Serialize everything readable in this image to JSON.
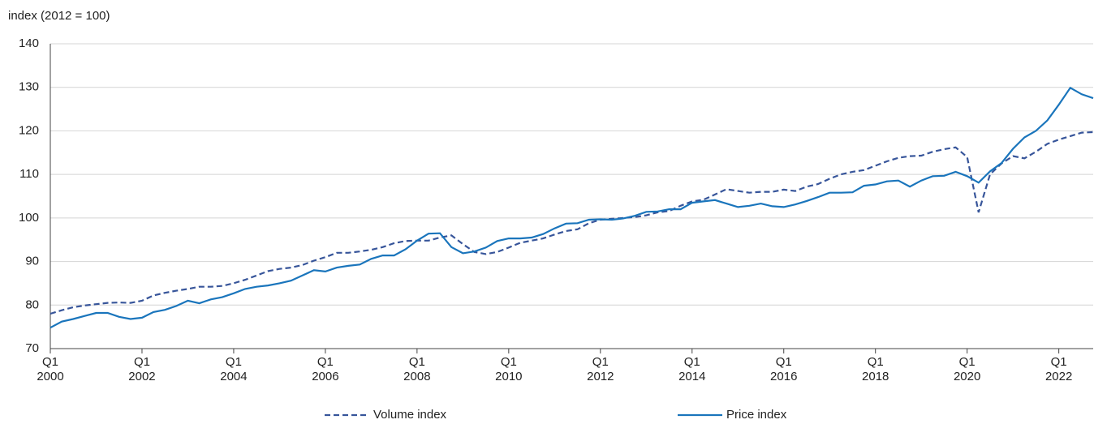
{
  "chart_data": {
    "type": "line",
    "y_label": "index (2012 = 100)",
    "categories": [
      "Q1 2000",
      null,
      null,
      null,
      null,
      null,
      null,
      null,
      "Q1 2002",
      null,
      null,
      null,
      null,
      null,
      null,
      null,
      "Q1 2004",
      null,
      null,
      null,
      null,
      null,
      null,
      null,
      "Q1 2006",
      null,
      null,
      null,
      null,
      null,
      null,
      null,
      "Q1 2008",
      null,
      null,
      null,
      null,
      null,
      null,
      null,
      "Q1 2010",
      null,
      null,
      null,
      null,
      null,
      null,
      null,
      "Q1 2012",
      null,
      null,
      null,
      null,
      null,
      null,
      null,
      "Q1 2014",
      null,
      null,
      null,
      null,
      null,
      null,
      null,
      "Q1 2016",
      null,
      null,
      null,
      null,
      null,
      null,
      null,
      "Q1 2018",
      null,
      null,
      null,
      null,
      null,
      null,
      null,
      "Q1 2020",
      null,
      null,
      null,
      null,
      null,
      null,
      null,
      "Q1 2022",
      null,
      null,
      null
    ],
    "series": [
      {
        "name": "Volume index",
        "color": "#37559a",
        "dashed": true,
        "values": [
          78.0,
          78.8,
          79.5,
          79.9,
          80.2,
          80.5,
          80.6,
          80.5,
          81.0,
          82.2,
          82.8,
          83.3,
          83.7,
          84.2,
          84.2,
          84.4,
          85.0,
          85.8,
          86.8,
          87.8,
          88.3,
          88.6,
          89.2,
          90.2,
          91.0,
          92.0,
          92.0,
          92.3,
          92.7,
          93.3,
          94.2,
          94.7,
          94.8,
          94.8,
          95.5,
          96.0,
          94.0,
          92.2,
          91.7,
          92.2,
          93.2,
          94.3,
          94.8,
          95.3,
          96.2,
          97.0,
          97.4,
          98.8,
          99.6,
          99.8,
          100.0,
          100.2,
          100.6,
          101.3,
          101.6,
          102.8,
          103.8,
          104.2,
          105.4,
          106.6,
          106.2,
          105.8,
          106.0,
          106.0,
          106.5,
          106.2,
          107.2,
          107.8,
          109.0,
          110.0,
          110.6,
          111.0,
          112.0,
          113.0,
          113.8,
          114.2,
          114.3,
          115.2,
          115.8,
          116.2,
          114.0,
          101.3,
          110.0,
          112.5,
          114.2,
          113.7,
          115.2,
          117.0,
          118.0,
          118.8,
          119.6,
          119.7
        ]
      },
      {
        "name": "Price index",
        "color": "#1a75bc",
        "dashed": false,
        "values": [
          74.8,
          76.2,
          76.8,
          77.5,
          78.2,
          78.2,
          77.3,
          76.8,
          77.1,
          78.4,
          78.9,
          79.8,
          81.0,
          80.4,
          81.3,
          81.8,
          82.7,
          83.7,
          84.2,
          84.5,
          85.0,
          85.6,
          86.8,
          88.0,
          87.7,
          88.6,
          89.0,
          89.3,
          90.6,
          91.4,
          91.4,
          92.8,
          94.8,
          96.4,
          96.5,
          93.3,
          91.9,
          92.3,
          93.2,
          94.7,
          95.3,
          95.3,
          95.5,
          96.3,
          97.6,
          98.7,
          98.8,
          99.6,
          99.7,
          99.6,
          99.9,
          100.5,
          101.4,
          101.5,
          102.0,
          102.0,
          103.5,
          103.8,
          104.1,
          103.3,
          102.5,
          102.8,
          103.3,
          102.7,
          102.5,
          103.1,
          103.9,
          104.8,
          105.8,
          105.8,
          105.9,
          107.4,
          107.7,
          108.4,
          108.6,
          107.2,
          108.6,
          109.6,
          109.7,
          110.6,
          109.6,
          108.1,
          110.7,
          112.6,
          115.9,
          118.5,
          120.0,
          122.4,
          126.0,
          129.9,
          128.4,
          127.5
        ]
      }
    ],
    "ylim": [
      70,
      140
    ],
    "yticks": [
      70,
      80,
      90,
      100,
      110,
      120,
      130,
      140
    ],
    "grid": true,
    "legend": "bottom"
  }
}
